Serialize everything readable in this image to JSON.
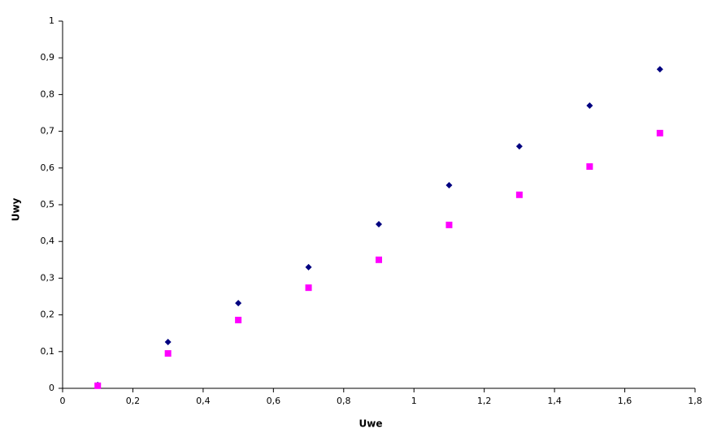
{
  "chart_data": {
    "type": "scatter",
    "x_label": "Uwe",
    "y_label": "Uwy",
    "series": [
      {
        "color": "#000080",
        "marker": "diamond",
        "x": [
          0.1,
          0.3,
          0.5,
          0.7,
          0.9,
          1.1,
          1.3,
          1.5,
          1.7
        ],
        "values": [
          0.009,
          0.126,
          0.232,
          0.33,
          0.447,
          0.553,
          0.659,
          0.77,
          0.869
        ]
      },
      {
        "color": "#ff00ff",
        "marker": "square",
        "x": [
          0.1,
          0.3,
          0.5,
          0.7,
          0.9,
          1.1,
          1.3,
          1.5,
          1.7
        ],
        "values": [
          0.007,
          0.095,
          0.186,
          0.274,
          0.35,
          0.445,
          0.527,
          0.604,
          0.695
        ]
      }
    ],
    "xlim": [
      0,
      1.8
    ],
    "xticks": [
      0,
      {
        "value": 0.2,
        "label": "0,2"
      },
      {
        "value": 0.4,
        "label": "0,4"
      },
      {
        "value": 0.6,
        "label": "0,6"
      },
      {
        "value": 0.8,
        "label": "0,8"
      },
      1,
      {
        "value": 1.2,
        "label": "1,2"
      },
      {
        "value": 1.4,
        "label": "1,4"
      },
      {
        "value": 1.6,
        "label": "1,6"
      },
      {
        "value": 1.8,
        "label": "1,8"
      }
    ],
    "ylim": [
      0,
      1
    ],
    "yticks": [
      0,
      {
        "value": 0.1,
        "label": "0,1"
      },
      {
        "value": 0.2,
        "label": "0,2"
      },
      {
        "value": 0.3,
        "label": "0,3"
      },
      {
        "value": 0.4,
        "label": "0,4"
      },
      {
        "value": 0.5,
        "label": "0,5"
      },
      {
        "value": 0.6,
        "label": "0,6"
      },
      {
        "value": 0.7,
        "label": "0,7"
      },
      {
        "value": 0.8,
        "label": "0,8"
      },
      {
        "value": 0.9,
        "label": "0,9"
      },
      1
    ],
    "grid": false
  }
}
